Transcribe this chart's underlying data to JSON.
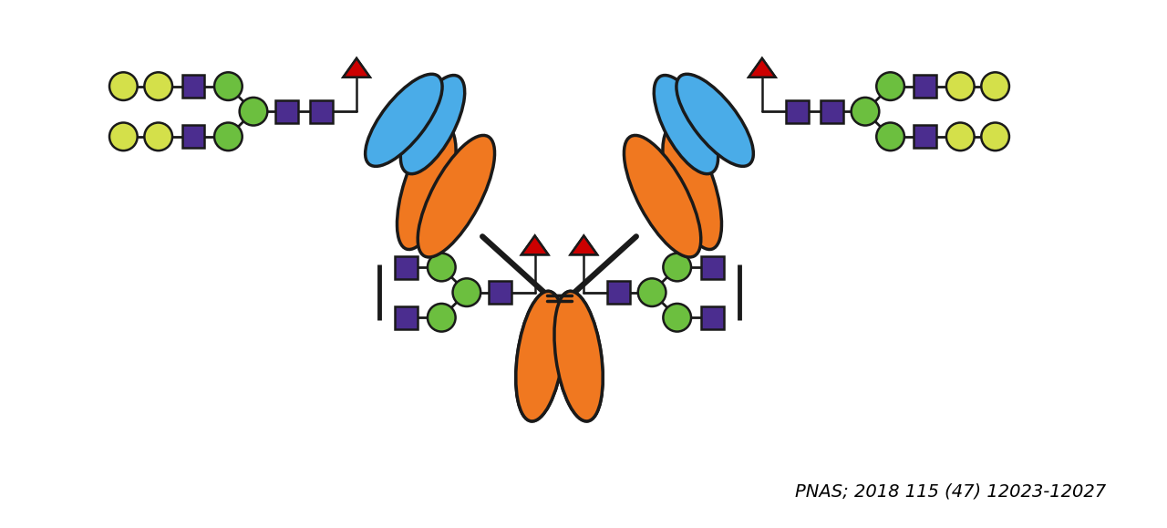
{
  "colors": {
    "orange": "#F07820",
    "blue": "#4AACE8",
    "purple": "#4B2D8F",
    "green": "#6CBF3F",
    "yellow": "#D4E04A",
    "red": "#CC0000",
    "black": "#1A1A1A",
    "outline": "#1A1A1A",
    "background": "#FFFFFF"
  },
  "text": {
    "citation": "PNAS; 2018 115 (47) 12023-12027",
    "citation_fontsize": 14
  }
}
